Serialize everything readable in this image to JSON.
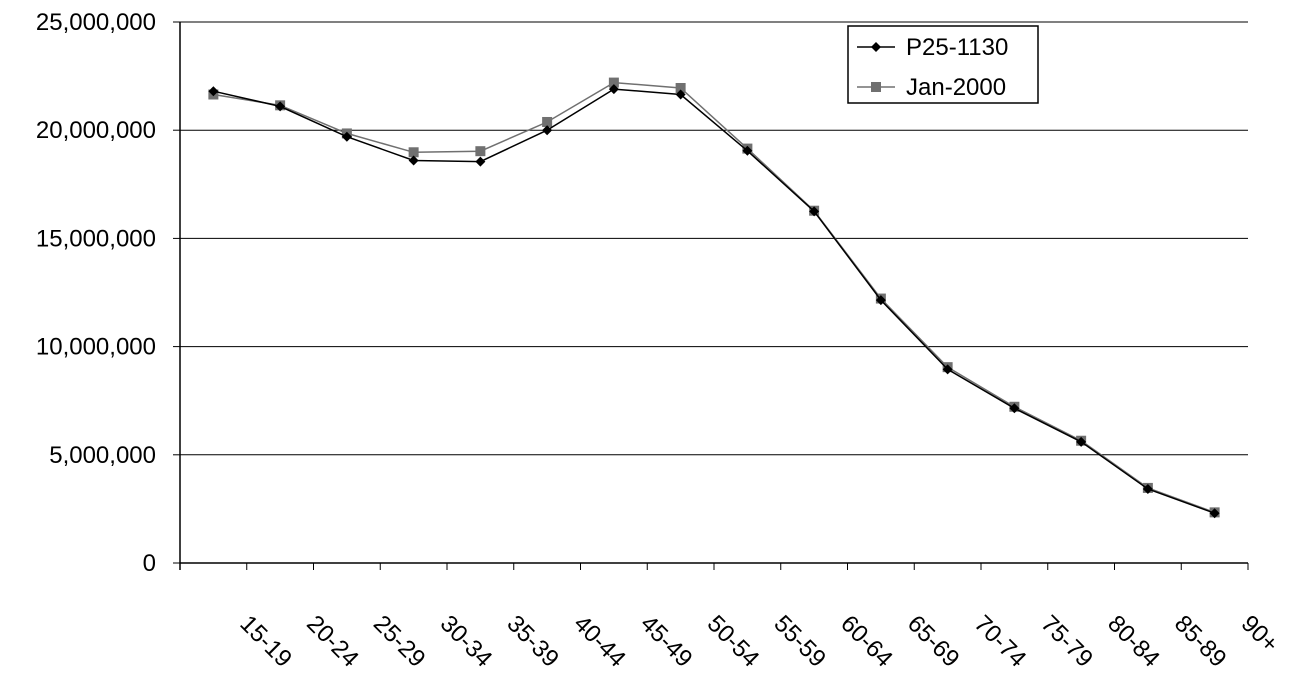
{
  "chart_data": {
    "type": "line",
    "title": "",
    "xlabel": "",
    "ylabel": "",
    "categories": [
      "15-19",
      "20-24",
      "25-29",
      "30-34",
      "35-39",
      "40-44",
      "45-49",
      "50-54",
      "55-59",
      "60-64",
      "65-69",
      "70-74",
      "75-79",
      "80-84",
      "85-89",
      "90+"
    ],
    "ylim": [
      0,
      25000000
    ],
    "yticks": [
      0,
      5000000,
      10000000,
      15000000,
      20000000,
      25000000
    ],
    "ytick_labels": [
      "0",
      "5,000,000",
      "10,000,000",
      "15,000,000",
      "20,000,000",
      "25,000,000"
    ],
    "grid": "horizontal",
    "legend": "top-right",
    "series": [
      {
        "name": "P25-1130",
        "marker": "diamond",
        "color": "#000000",
        "values": [
          21800000,
          21100000,
          19700000,
          18600000,
          18550000,
          20000000,
          21900000,
          21650000,
          19050000,
          16250000,
          12150000,
          8950000,
          7150000,
          5600000,
          3420000,
          2300000
        ]
      },
      {
        "name": "Jan-2000",
        "marker": "square",
        "color": "#707070",
        "values": [
          21650000,
          21150000,
          19850000,
          18980000,
          19030000,
          20380000,
          22200000,
          21950000,
          19150000,
          16280000,
          12220000,
          9050000,
          7220000,
          5650000,
          3470000,
          2340000
        ]
      }
    ]
  }
}
